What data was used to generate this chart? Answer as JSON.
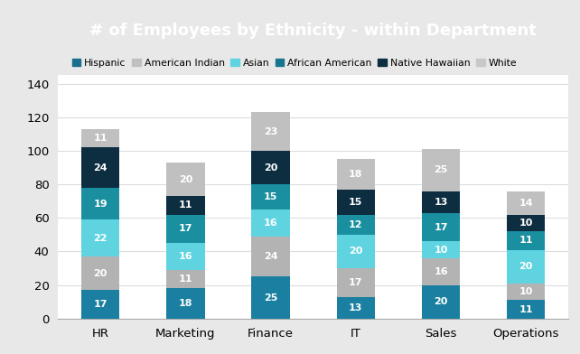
{
  "title": "# of Employees by Ethnicity - within Department",
  "categories": [
    "HR",
    "Marketing",
    "Finance",
    "IT",
    "Sales",
    "Operations"
  ],
  "series": {
    "Hispanic": [
      17,
      18,
      25,
      13,
      20,
      11
    ],
    "American Indian": [
      20,
      11,
      24,
      17,
      16,
      10
    ],
    "Asian": [
      22,
      16,
      16,
      20,
      10,
      20
    ],
    "African American": [
      19,
      17,
      15,
      12,
      17,
      11
    ],
    "Native Hawaiian": [
      24,
      11,
      20,
      15,
      13,
      10
    ],
    "White": [
      11,
      20,
      23,
      18,
      25,
      14
    ]
  },
  "bar_colors": {
    "Hispanic": "#1a7fa0",
    "American Indian": "#b3b3b3",
    "Asian": "#5fd4e0",
    "African American": "#1a8fa0",
    "Native Hawaiian": "#0d2d40",
    "White": "#c0c0c0"
  },
  "legend_colors": {
    "Hispanic": "#1a6e8e",
    "American Indian": "#c0c0c0",
    "Asian": "#5fd4e0",
    "African American": "#17768e",
    "Native Hawaiian": "#0d2d40",
    "White": "#c8c8c8"
  },
  "order": [
    "Hispanic",
    "American Indian",
    "Asian",
    "African American",
    "Native Hawaiian",
    "White"
  ],
  "ylim": [
    0,
    145
  ],
  "yticks": [
    0,
    20,
    40,
    60,
    80,
    100,
    120,
    140
  ],
  "title_bg_color": "#808080",
  "title_text_color": "#ffffff",
  "outer_bg_color": "#e8e8e8",
  "plot_bg_color": "#ffffff",
  "title_fontsize": 13,
  "legend_fontsize": 7.8,
  "label_fontsize": 8.0,
  "tick_fontsize": 9.5
}
